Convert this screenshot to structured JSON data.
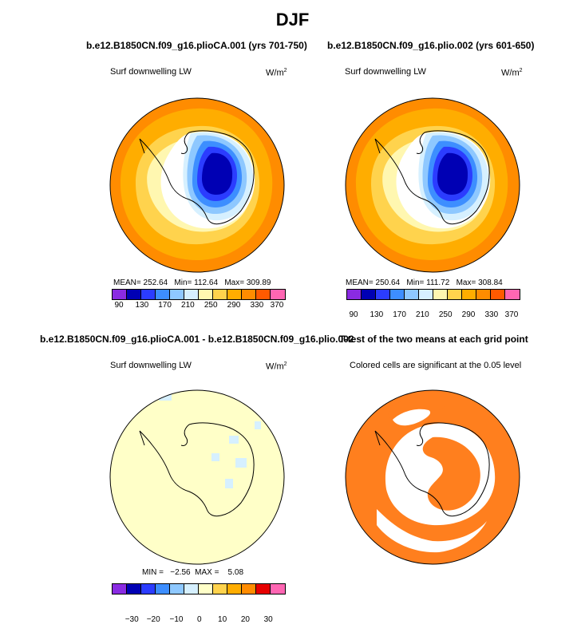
{
  "page_title": "DJF",
  "colors": {
    "abs_fill": [
      "#8a2be2",
      "#0000b4",
      "#2b3cff",
      "#3d8eff",
      "#8ec8ff",
      "#d6f0ff",
      "#fff7b0",
      "#ffd34d",
      "#ffad00",
      "#ff8c00",
      "#ff5a00",
      "#e60000",
      "#b00000",
      "#ff66b3"
    ],
    "diff_fill": [
      "#8a2be2",
      "#0000b4",
      "#2b3cff",
      "#3d8eff",
      "#8ec8ff",
      "#d6f0ff",
      "#ffffc8",
      "#ffd34d",
      "#ffad00",
      "#ff8c00",
      "#ff5a00",
      "#e60000",
      "#b00000",
      "#ff66b3"
    ],
    "ttest_fill": "#ff7f1e"
  },
  "chart_data": [
    {
      "type": "heatmap",
      "name": "panel-1",
      "title": "b.e12.B1850CN.f09_g16.plioCA.001 (yrs 701-750)",
      "label_left": "Surf downwelling LW",
      "units": "W/m",
      "units_sup": "2",
      "stats": "MEAN= 252.64   Min= 112.64   Max= 309.89",
      "mean": 252.64,
      "min": 112.64,
      "max": 309.89,
      "levels": [
        90,
        110,
        130,
        150,
        170,
        190,
        210,
        230,
        250,
        270,
        290,
        310,
        330,
        350,
        370
      ],
      "tick_labels": [
        "90",
        "130",
        "170",
        "210",
        "250",
        "290",
        "330",
        "370"
      ]
    },
    {
      "type": "heatmap",
      "name": "panel-2",
      "title": "b.e12.B1850CN.f09_g16.plio.002 (yrs 601-650)",
      "label_left": "Surf downwelling LW",
      "units": "W/m",
      "units_sup": "2",
      "stats": "MEAN= 250.64   Min= 111.72   Max= 308.84",
      "mean": 250.64,
      "min": 111.72,
      "max": 308.84,
      "levels": [
        90,
        110,
        130,
        150,
        170,
        190,
        210,
        230,
        250,
        270,
        290,
        310,
        330,
        350,
        370
      ],
      "tick_labels": [
        "90",
        "130",
        "170",
        "210",
        "250",
        "290",
        "330",
        "370"
      ]
    },
    {
      "type": "heatmap",
      "name": "panel-3",
      "title": "b.e12.B1850CN.f09_g16.plioCA.001 - b.e12.B1850CN.f09_g16.plio.002",
      "label_left": "Surf downwelling LW",
      "units": "W/m",
      "units_sup": "2",
      "stats": "MIN =   −2.56  MAX =    5.08",
      "min": -2.56,
      "max": 5.08,
      "tick_labels": [
        "−30",
        "−20",
        "−10",
        "0",
        "10",
        "20",
        "30"
      ]
    },
    {
      "type": "heatmap",
      "name": "panel-4",
      "title": "T-test of the two means at each grid point",
      "label_left": "Colored cells are significant at the 0.05 level",
      "significance_level": 0.05
    }
  ]
}
